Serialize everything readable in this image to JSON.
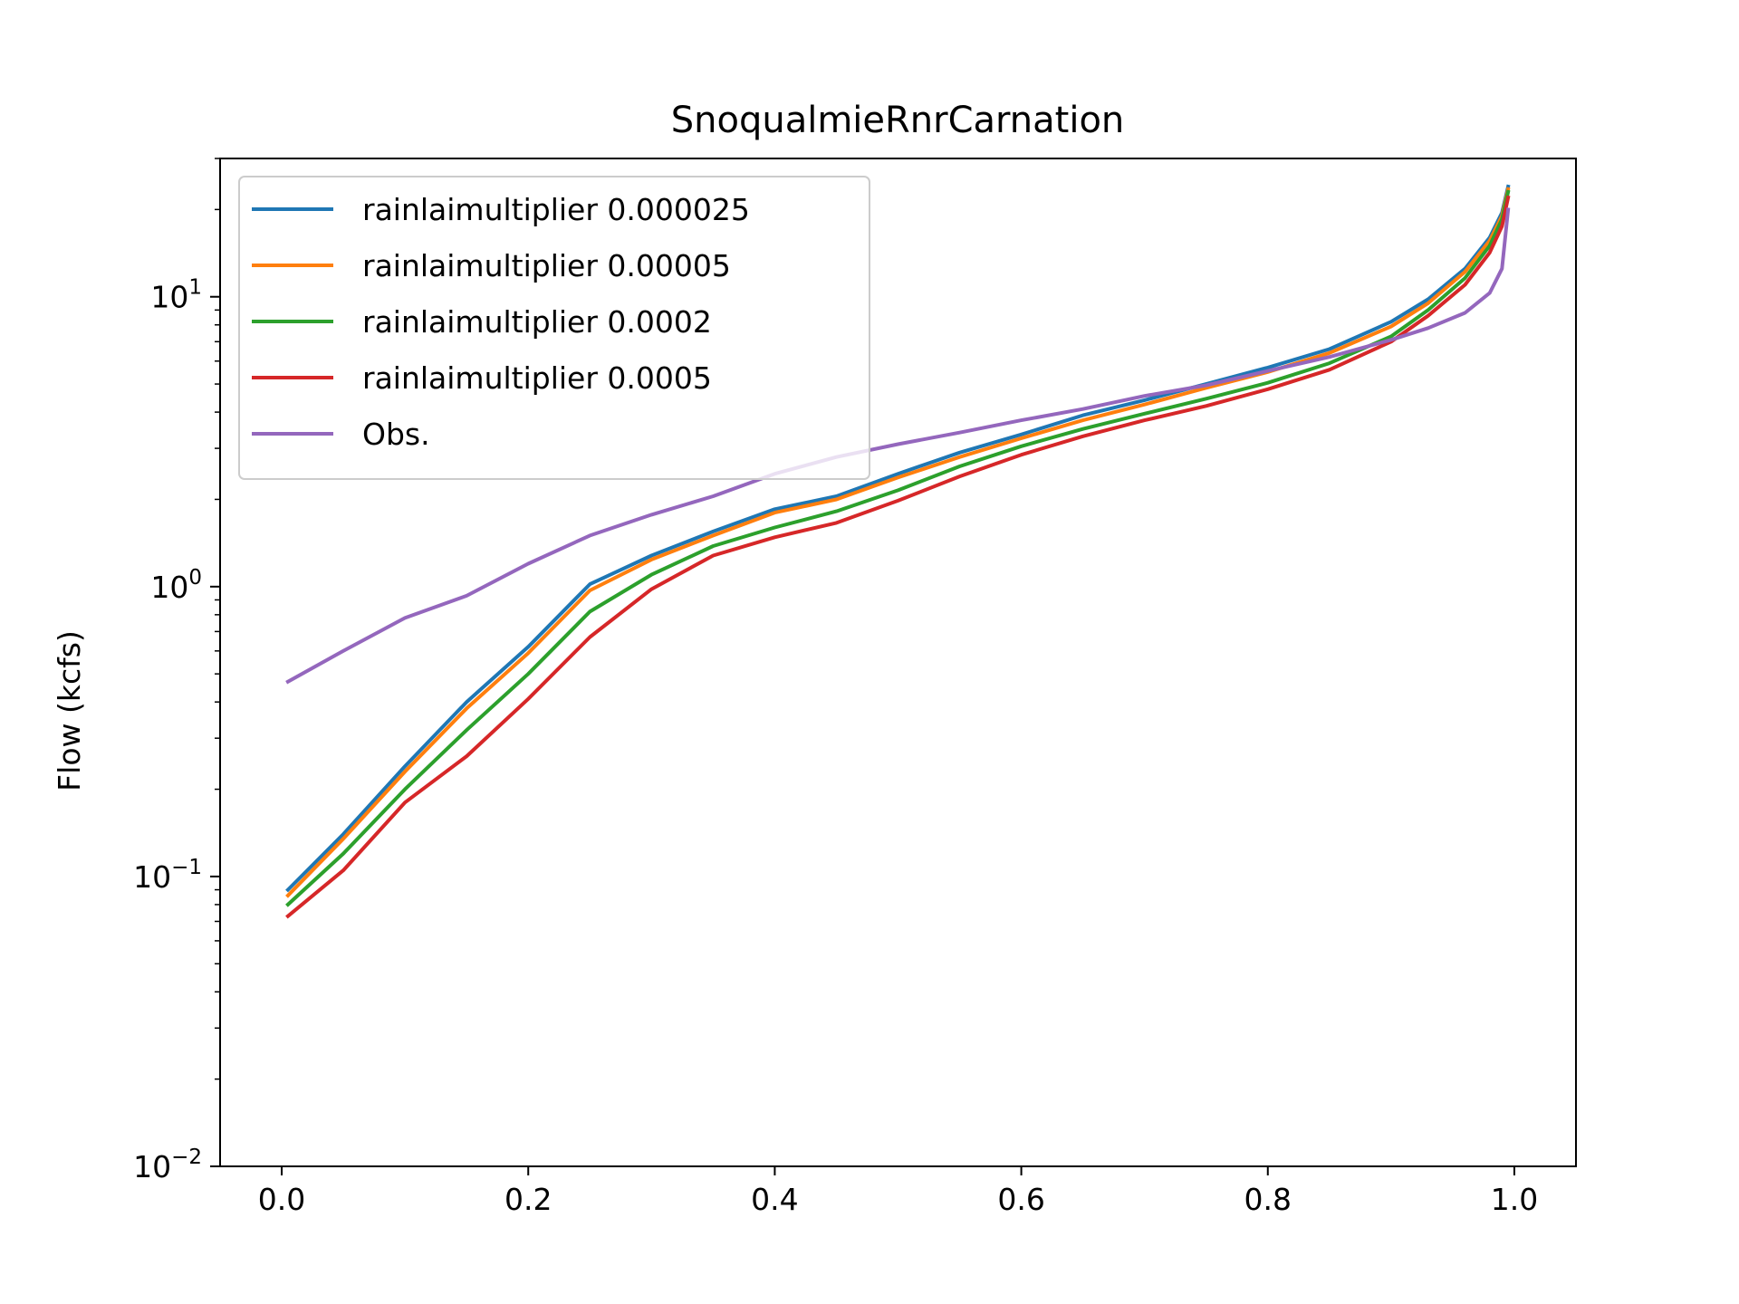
{
  "chart_data": {
    "type": "line",
    "title": "SnoqualmieRnrCarnation",
    "xlabel": "",
    "ylabel": "Flow (kcfs)",
    "xlim": [
      -0.05,
      1.05
    ],
    "ylim": [
      0.01,
      30
    ],
    "yscale": "log",
    "grid": false,
    "legend_position": "upper-left",
    "x_ticks": [
      {
        "value": 0.0,
        "label": "0.0"
      },
      {
        "value": 0.2,
        "label": "0.2"
      },
      {
        "value": 0.4,
        "label": "0.4"
      },
      {
        "value": 0.6,
        "label": "0.6"
      },
      {
        "value": 0.8,
        "label": "0.8"
      },
      {
        "value": 1.0,
        "label": "1.0"
      }
    ],
    "y_ticks": [
      {
        "value": 0.01,
        "base": "10",
        "exp": "−2"
      },
      {
        "value": 0.1,
        "base": "10",
        "exp": "−1"
      },
      {
        "value": 1,
        "base": "10",
        "exp": "0"
      },
      {
        "value": 10,
        "base": "10",
        "exp": "1"
      }
    ],
    "x": [
      0.005,
      0.05,
      0.1,
      0.15,
      0.2,
      0.25,
      0.3,
      0.35,
      0.4,
      0.45,
      0.5,
      0.55,
      0.6,
      0.65,
      0.7,
      0.75,
      0.8,
      0.85,
      0.9,
      0.93,
      0.96,
      0.98,
      0.99,
      0.995
    ],
    "series": [
      {
        "name": "rainlaimultiplier 0.000025",
        "color": "#1f77b4",
        "values": [
          0.09,
          0.14,
          0.24,
          0.4,
          0.62,
          1.02,
          1.28,
          1.55,
          1.85,
          2.05,
          2.45,
          2.9,
          3.35,
          3.9,
          4.4,
          5.0,
          5.7,
          6.6,
          8.2,
          9.8,
          12.5,
          16.0,
          19.5,
          24.0
        ]
      },
      {
        "name": "rainlaimultiplier 0.00005",
        "color": "#ff7f0e",
        "values": [
          0.086,
          0.135,
          0.23,
          0.38,
          0.59,
          0.97,
          1.24,
          1.5,
          1.8,
          2.0,
          2.38,
          2.8,
          3.25,
          3.75,
          4.25,
          4.85,
          5.5,
          6.4,
          7.9,
          9.5,
          12.2,
          15.6,
          19.0,
          23.5
        ]
      },
      {
        "name": "rainlaimultiplier 0.0002",
        "color": "#2ca02c",
        "values": [
          0.08,
          0.12,
          0.2,
          0.32,
          0.5,
          0.82,
          1.1,
          1.38,
          1.6,
          1.82,
          2.15,
          2.6,
          3.05,
          3.5,
          3.95,
          4.45,
          5.05,
          5.9,
          7.3,
          9.0,
          11.6,
          15.0,
          18.5,
          23.0
        ]
      },
      {
        "name": "rainlaimultiplier 0.0005",
        "color": "#d62728",
        "values": [
          0.073,
          0.105,
          0.18,
          0.26,
          0.41,
          0.67,
          0.98,
          1.28,
          1.48,
          1.66,
          1.98,
          2.4,
          2.85,
          3.3,
          3.75,
          4.2,
          4.8,
          5.6,
          7.0,
          8.6,
          11.0,
          14.2,
          17.5,
          22.0
        ]
      },
      {
        "name": "Obs.",
        "color": "#9467bd",
        "values": [
          0.47,
          0.6,
          0.78,
          0.93,
          1.2,
          1.5,
          1.77,
          2.05,
          2.45,
          2.8,
          3.1,
          3.4,
          3.75,
          4.1,
          4.55,
          4.95,
          5.55,
          6.2,
          7.1,
          7.8,
          8.8,
          10.3,
          12.5,
          20.0
        ]
      }
    ]
  }
}
